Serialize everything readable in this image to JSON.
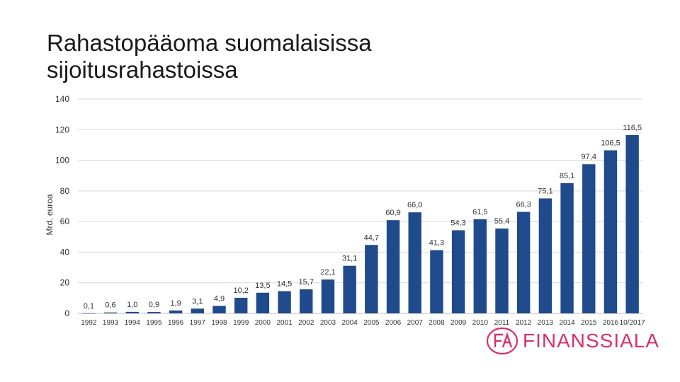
{
  "title_line1": "Rahastopääoma suomalaisissa",
  "title_line2": "sijoitusrahastoissa",
  "logo": {
    "text": "FINANSSIALA",
    "icon": "fa-logo-icon",
    "color": "#d6336c"
  },
  "colors": {
    "bar": "#1f4a8c",
    "grid": "#d9d9d9",
    "axis": "#bfbfbf",
    "text": "#333333"
  },
  "chart_data": {
    "type": "bar",
    "ylabel": "Mrd. euroa",
    "xlabel": "",
    "ylim": [
      0,
      140
    ],
    "yticks": [
      0,
      20,
      40,
      60,
      80,
      100,
      120,
      140
    ],
    "grid": true,
    "categories": [
      "1992",
      "1993",
      "1994",
      "1995",
      "1996",
      "1997",
      "1998",
      "1999",
      "2000",
      "2001",
      "2002",
      "2003",
      "2004",
      "2005",
      "2006",
      "2007",
      "2008",
      "2009",
      "2010",
      "2011",
      "2012",
      "2013",
      "2014",
      "2015",
      "2016",
      "10/2017"
    ],
    "values": [
      0.1,
      0.6,
      1.0,
      0.9,
      1.9,
      3.1,
      4.9,
      10.2,
      13.5,
      14.5,
      15.7,
      22.1,
      31.1,
      44.7,
      60.9,
      66.0,
      41.3,
      54.3,
      61.5,
      55.4,
      66.3,
      75.1,
      85.1,
      97.4,
      106.5,
      116.5
    ],
    "value_labels": [
      "0,1",
      "0,6",
      "1,0",
      "0,9",
      "1,9",
      "3,1",
      "4,9",
      "10,2",
      "13,5",
      "14,5",
      "15,7",
      "22,1",
      "31,1",
      "44,7",
      "60,9",
      "66,0",
      "41,3",
      "54,3",
      "61,5",
      "55,4",
      "66,3",
      "75,1",
      "85,1",
      "97,4",
      "106,5",
      "116,5"
    ]
  }
}
